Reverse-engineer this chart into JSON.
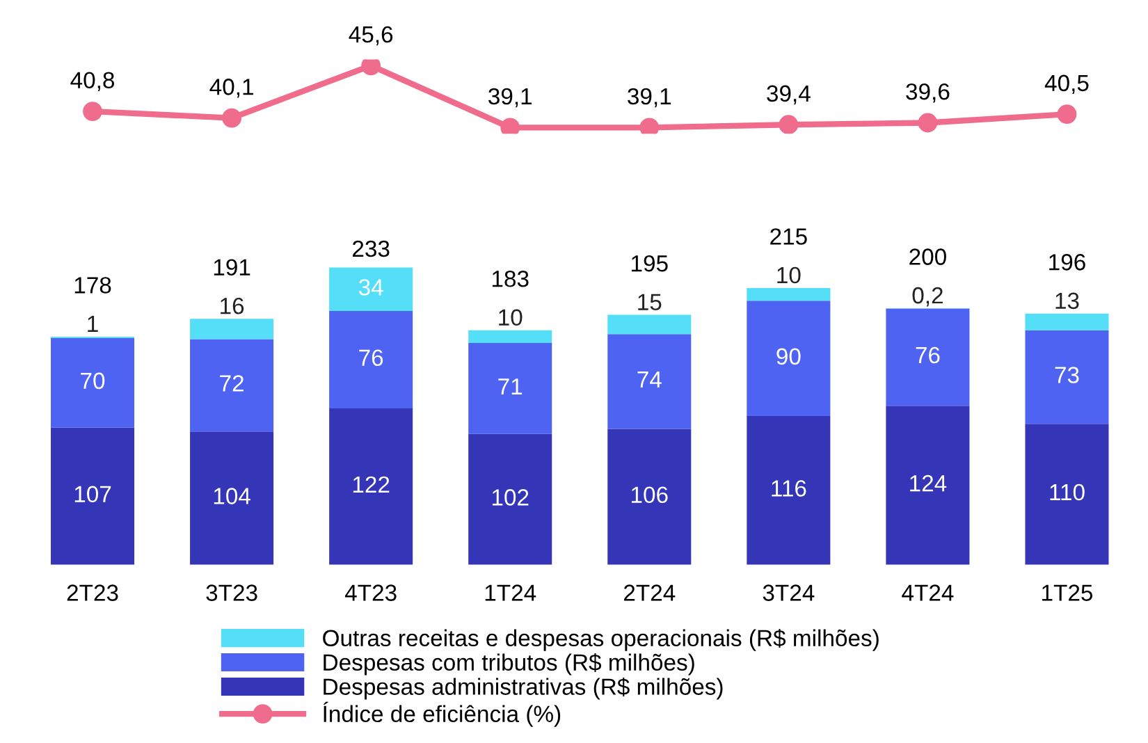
{
  "chart_data": [
    {
      "type": "bar",
      "stacked": true,
      "legend": "bottom",
      "grid": false,
      "categories": [
        "2T23",
        "3T23",
        "4T23",
        "1T24",
        "2T24",
        "3T24",
        "4T24",
        "1T25"
      ],
      "series": [
        {
          "name": "Despesas administrativas (R$ milhões)",
          "color": "#3535b8",
          "values": [
            107,
            104,
            122,
            102,
            106,
            116,
            124,
            110
          ],
          "value_labels": [
            "107",
            "104",
            "122",
            "102",
            "106",
            "116",
            "124",
            "110"
          ]
        },
        {
          "name": "Despesas com tributos (R$ milhões)",
          "color": "#4f63f2",
          "values": [
            70,
            72,
            76,
            71,
            74,
            90,
            76,
            73
          ],
          "value_labels": [
            "70",
            "72",
            "76",
            "71",
            "74",
            "90",
            "76",
            "73"
          ]
        },
        {
          "name": "Outras receitas e despesas operacionais (R$ milhões)",
          "color": "#55def8",
          "values": [
            1,
            16,
            34,
            10,
            15,
            10,
            0.2,
            13
          ],
          "value_labels": [
            "1",
            "16",
            "34",
            "10",
            "15",
            "10",
            "0,2",
            "13"
          ]
        }
      ],
      "totals": [
        "178",
        "191",
        "233",
        "183",
        "195",
        "215",
        "200",
        "196"
      ]
    },
    {
      "type": "line",
      "legend": "bottom",
      "grid": false,
      "categories": [
        null,
        null,
        null,
        null,
        null,
        null,
        null,
        null
      ],
      "series": [
        {
          "name": "Índice de eficiência (%)",
          "color": "#f06c8c",
          "marker": "circle",
          "values": [
            40.8,
            40.1,
            45.6,
            39.1,
            39.1,
            39.4,
            39.6,
            40.5
          ],
          "value_labels": [
            "40,8",
            "40,1",
            "45,6",
            "39,1",
            "39,1",
            "39,4",
            "39,6",
            "40,5"
          ]
        }
      ]
    }
  ]
}
